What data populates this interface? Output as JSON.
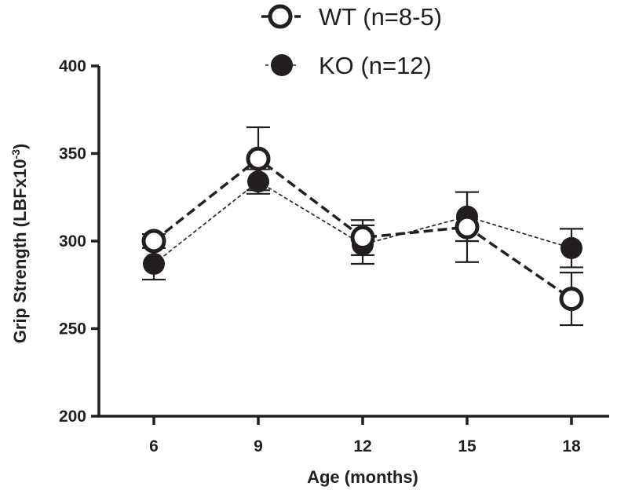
{
  "chart_data": {
    "type": "line",
    "title": "",
    "xlabel": "Age (months)",
    "ylabel": {
      "main": "Grip Strength (LBFx10",
      "superscript": "-3",
      "suffix": ")"
    },
    "x": [
      6,
      9,
      12,
      15,
      18
    ],
    "x_tick_labels": [
      "6",
      "9",
      "12",
      "15",
      "18"
    ],
    "ylim": [
      200,
      400
    ],
    "y_ticks": [
      200,
      250,
      300,
      350,
      400
    ],
    "y_tick_labels": [
      "200",
      "250",
      "300",
      "350",
      "400"
    ],
    "grid": false,
    "legend_position": "top-center",
    "series": [
      {
        "name": "WT (n=8-5)",
        "marker": "open-circle",
        "line_style": "thick-dashed",
        "values": [
          300,
          347,
          302,
          308,
          267
        ],
        "error": [
          4,
          18,
          10,
          20,
          15
        ]
      },
      {
        "name": "KO (n=12)",
        "marker": "filled-circle",
        "line_style": "thin-dashed",
        "values": [
          287,
          334,
          298,
          314,
          296
        ],
        "error": [
          9,
          7,
          11,
          14,
          11
        ]
      }
    ]
  }
}
